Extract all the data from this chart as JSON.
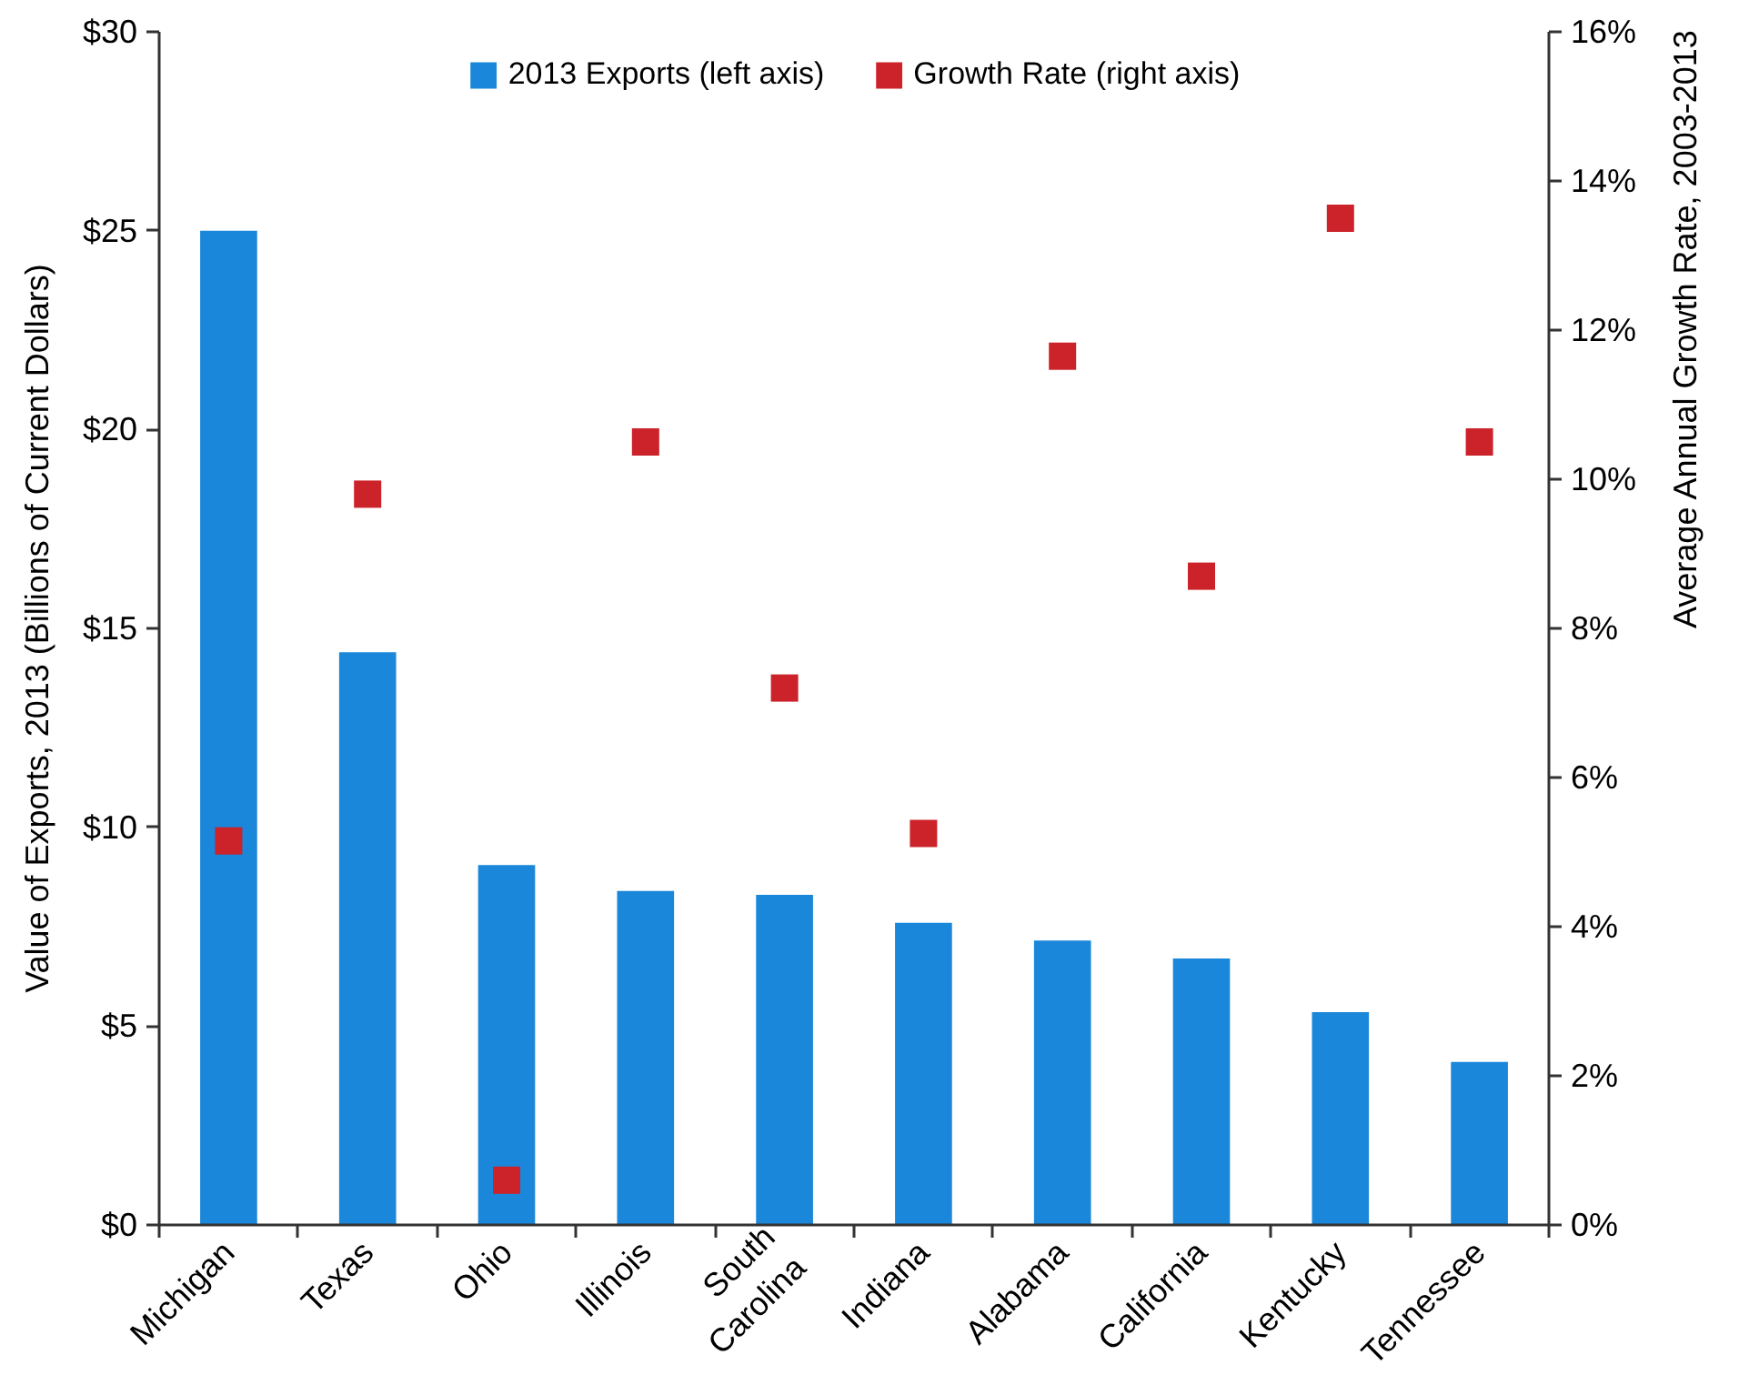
{
  "chart_data": {
    "type": "bar",
    "categories": [
      "Michigan",
      "Texas",
      "Ohio",
      "Illinois",
      "South Carolina",
      "Indiana",
      "Alabama",
      "California",
      "Kentucky",
      "Tennessee"
    ],
    "series": [
      {
        "name": "2013 Exports (left axis)",
        "color": "#1a87da",
        "values": [
          25.0,
          14.4,
          9.05,
          8.4,
          8.3,
          7.6,
          7.15,
          6.7,
          5.35,
          4.1
        ]
      },
      {
        "name": "Growth Rate (right axis)",
        "type": "scatter",
        "axis": "y2",
        "color": "#cc2229",
        "values": [
          5.15,
          9.8,
          0.6,
          10.5,
          7.2,
          5.25,
          11.65,
          8.7,
          13.5,
          10.5
        ]
      }
    ],
    "ylabel": "Value of Exports, 2013 (Billions of Current Dollars)",
    "y2label": "Average Annual Growth Rate, 2003-2013",
    "ylim": [
      0,
      30
    ],
    "yticks": [
      {
        "value": 0,
        "label": "$0"
      },
      {
        "value": 5,
        "label": "$5"
      },
      {
        "value": 10,
        "label": "$10"
      },
      {
        "value": 15,
        "label": "$15"
      },
      {
        "value": 20,
        "label": "$20"
      },
      {
        "value": 25,
        "label": "$25"
      },
      {
        "value": 30,
        "label": "$30"
      }
    ],
    "y2lim": [
      0,
      16
    ],
    "y2ticks": [
      {
        "value": 0,
        "label": "0%"
      },
      {
        "value": 2,
        "label": "2%"
      },
      {
        "value": 4,
        "label": "4%"
      },
      {
        "value": 6,
        "label": "6%"
      },
      {
        "value": 8,
        "label": "8%"
      },
      {
        "value": 10,
        "label": "10%"
      },
      {
        "value": 12,
        "label": "12%"
      },
      {
        "value": 14,
        "label": "14%"
      },
      {
        "value": 16,
        "label": "16%"
      }
    ],
    "grid": false,
    "legend": "top",
    "marker": "square"
  }
}
